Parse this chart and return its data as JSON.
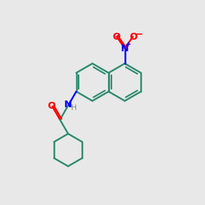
{
  "bg_color": "#e8e8e8",
  "bond_color": "#2d8c6e",
  "nitrogen_color": "#0000ff",
  "oxygen_color": "#ff0000",
  "h_color": "#808080",
  "line_width": 1.8,
  "figsize": [
    3.0,
    3.0
  ],
  "dpi": 100,
  "xlim": [
    0,
    10
  ],
  "ylim": [
    0,
    10
  ]
}
